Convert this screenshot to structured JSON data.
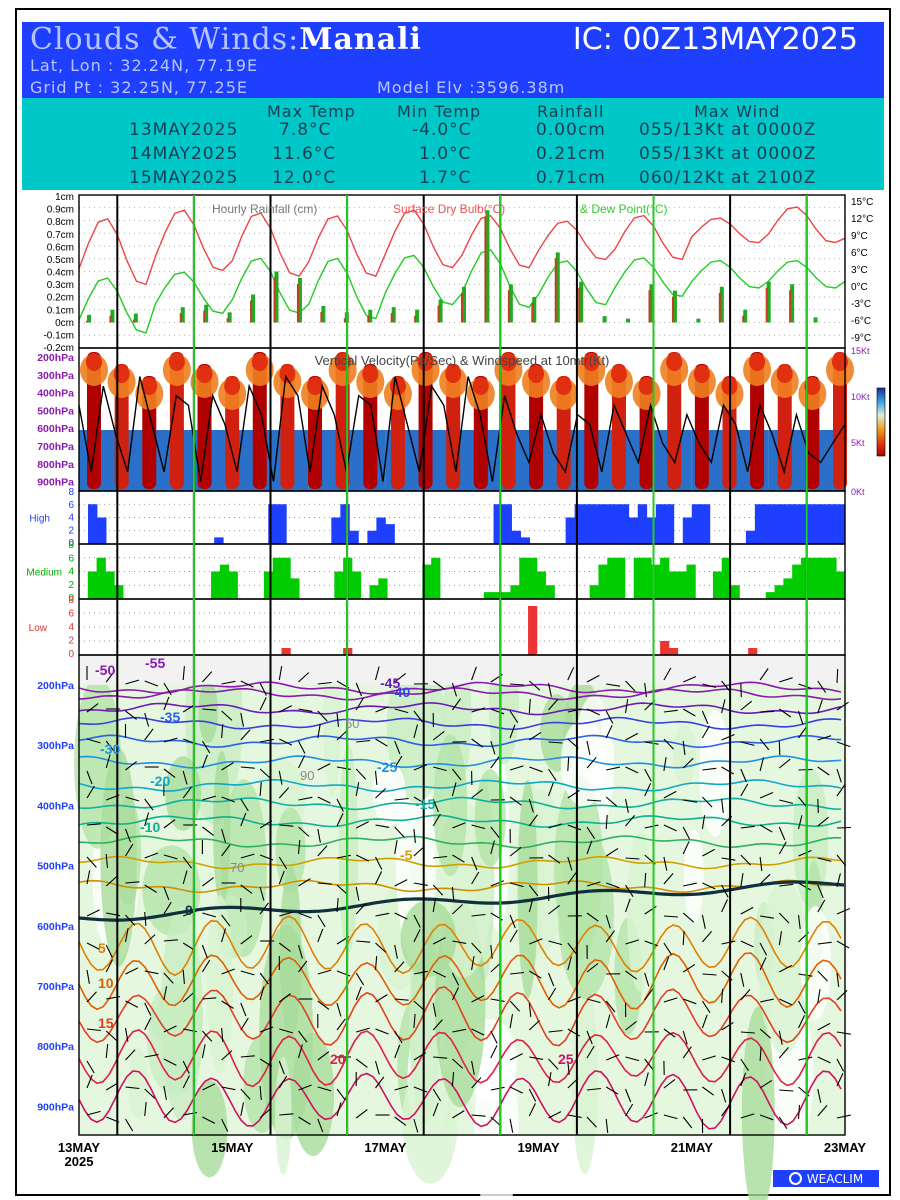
{
  "header": {
    "title_prefix": "Clouds & Winds:",
    "location": "Manali",
    "ic": "IC: 00Z13MAY2025",
    "latlon": "Lat, Lon : 32.24N, 77.19E",
    "gridpt": "Grid Pt  : 32.25N, 77.25E",
    "model_elv": "Model Elv :3596.38m"
  },
  "summary": {
    "columns": [
      "Max Temp",
      "Min Temp",
      "Rainfall",
      "Max Wind"
    ],
    "rows": [
      {
        "date": "13MAY2025",
        "max_temp": "7.8°C",
        "min_temp": "-4.0°C",
        "rainfall": "0.00cm",
        "max_wind": "055/13Kt at 0000Z"
      },
      {
        "date": "14MAY2025",
        "max_temp": "11.6°C",
        "min_temp": "1.0°C",
        "rainfall": "0.21cm",
        "max_wind": "055/13Kt at 0000Z"
      },
      {
        "date": "15MAY2025",
        "max_temp": "12.0°C",
        "min_temp": "1.7°C",
        "rainfall": "0.71cm",
        "max_wind": "060/12Kt at 2100Z"
      }
    ]
  },
  "chart_data": {
    "type": "line",
    "panel1": {
      "title": "Hourly Rainfall (cm)",
      "title2": "Surface Dry Bulb(°C)",
      "title3": "& Dew Point(°C)",
      "left_ticks": [
        "1cm",
        "0.9cm",
        "0.8cm",
        "0.7cm",
        "0.6cm",
        "0.5cm",
        "0.4cm",
        "0.3cm",
        "0.2cm",
        "0.1cm",
        "0cm",
        "-0.1cm",
        "-0.2cm"
      ],
      "right_ticks": [
        "15°C",
        "12°C",
        "9°C",
        "6°C",
        "3°C",
        "0°C",
        "-3°C",
        "-6°C",
        "-9°C"
      ],
      "temp_range": [
        -10.5,
        16.5
      ],
      "rain_range": [
        -0.2,
        1.0
      ],
      "drybulb_max": [
        12.5,
        14.0,
        13.5,
        13.0,
        14.0,
        13.0,
        12.0,
        13.0,
        12.5,
        14.5
      ],
      "drybulb_min": [
        6.0,
        0.5,
        3.0,
        2.0,
        2.0,
        3.5,
        3.5,
        5.0,
        5.0,
        8.0,
        8.0,
        7.0
      ],
      "dewpoint_max": [
        2.0,
        3.0,
        5.5,
        5.5,
        6.0,
        7.0,
        5.0,
        5.5,
        5.0,
        5.0
      ],
      "dewpoint_min": [
        -3.5,
        -8.0,
        -4.5,
        -4.5,
        -5.5,
        -3.0,
        -3.5,
        -3.0,
        -1.5,
        0.0
      ],
      "rain_values": [
        0.06,
        0.1,
        0.07,
        0.0,
        0.12,
        0.14,
        0.08,
        0.22,
        0.4,
        0.35,
        0.13,
        0.08,
        0.1,
        0.12,
        0.1,
        0.18,
        0.28,
        0.88,
        0.3,
        0.2,
        0.55,
        0.32,
        0.05,
        0.03,
        0.3,
        0.25,
        0.03,
        0.28,
        0.1,
        0.32,
        0.3,
        0.04
      ]
    },
    "panel2": {
      "title": "Vertical Velocity(Pa/Sec) & Windspeed at 10mtr(Kt)",
      "left_ticks": [
        "200hPa",
        "300hPa",
        "400hPa",
        "500hPa",
        "600hPa",
        "700hPa",
        "800hPa",
        "900hPa"
      ],
      "right_ticks": [
        "15Kt",
        "10Kt",
        "5Kt",
        "0Kt"
      ],
      "windspeed_range": [
        0,
        15
      ],
      "windspeed": [
        9,
        2,
        11,
        6,
        2,
        12,
        7,
        2,
        10,
        9,
        1,
        10,
        7,
        2,
        11,
        8,
        1,
        12,
        10,
        2,
        11,
        8,
        2,
        10,
        9,
        1,
        12,
        7,
        2,
        11,
        9,
        2,
        12,
        8,
        1,
        10,
        6,
        3,
        8,
        4,
        2,
        8,
        7,
        2,
        9,
        6,
        3,
        9,
        5,
        3,
        8,
        5,
        3,
        9,
        7,
        2,
        9,
        6,
        2,
        8,
        4,
        3,
        5,
        7
      ]
    },
    "panel3": {
      "label_high": "High",
      "label_medium": "Medium",
      "label_low": "Low",
      "ticks_octa": [
        "8",
        "6",
        "4",
        "2",
        "0"
      ],
      "high_octa": [
        0,
        6,
        4,
        0,
        0,
        0,
        0,
        0,
        0,
        0,
        0,
        0,
        0,
        0,
        0,
        1,
        0,
        0,
        0,
        0,
        0,
        6,
        6,
        0,
        0,
        0,
        0,
        0,
        4,
        6,
        2,
        0,
        2,
        4,
        3,
        0,
        0,
        0,
        0,
        0,
        0,
        0,
        0,
        0,
        0,
        0,
        6,
        6,
        2,
        1,
        0,
        0,
        0,
        0,
        4,
        6,
        6,
        6,
        6,
        6,
        6,
        4,
        6,
        4,
        6,
        6,
        0,
        4,
        6,
        6,
        0,
        0,
        0,
        0,
        2,
        6,
        6,
        6,
        6,
        6,
        6,
        6,
        6,
        6,
        6
      ],
      "medium_octa": [
        0,
        4,
        6,
        4,
        2,
        0,
        0,
        0,
        0,
        0,
        0,
        0,
        0,
        0,
        0,
        4,
        5,
        4,
        0,
        0,
        0,
        4,
        6,
        6,
        3,
        0,
        0,
        0,
        0,
        4,
        6,
        4,
        0,
        2,
        3,
        0,
        0,
        0,
        0,
        5,
        6,
        0,
        0,
        0,
        0,
        0,
        1,
        1,
        1,
        2,
        6,
        6,
        4,
        2,
        0,
        0,
        0,
        0,
        2,
        5,
        6,
        6,
        0,
        6,
        6,
        5,
        6,
        4,
        4,
        5,
        0,
        0,
        4,
        6,
        2,
        0,
        0,
        0,
        1,
        2,
        3,
        5,
        6,
        6,
        6,
        6,
        4
      ],
      "low_octa": [
        0,
        0,
        0,
        0,
        0,
        0,
        0,
        0,
        0,
        0,
        0,
        0,
        0,
        0,
        0,
        0,
        0,
        0,
        0,
        0,
        0,
        0,
        0,
        1,
        0,
        0,
        0,
        0,
        0,
        0,
        1,
        0,
        0,
        0,
        0,
        0,
        0,
        0,
        0,
        0,
        0,
        0,
        0,
        0,
        0,
        0,
        0,
        0,
        0,
        0,
        0,
        7,
        0,
        0,
        0,
        0,
        0,
        0,
        0,
        0,
        0,
        0,
        0,
        0,
        0,
        0,
        2,
        1,
        0,
        0,
        0,
        0,
        0,
        0,
        0,
        0,
        1,
        0,
        0,
        0,
        0,
        0,
        0,
        0,
        0,
        0,
        0
      ]
    },
    "panel4": {
      "left_ticks": [
        "200hPa",
        "300hPa",
        "400hPa",
        "500hPa",
        "600hPa",
        "700hPa",
        "800hPa",
        "900hPa"
      ],
      "x_labels": [
        "13MAY",
        "15MAY",
        "17MAY",
        "19MAY",
        "21MAY",
        "23MAY"
      ],
      "x_year": "2025",
      "temp_labels": [
        "-55",
        "-50",
        "-45",
        "-40",
        "-35",
        "-30",
        "-25",
        "-20",
        "-15",
        "-10",
        "-5",
        "0",
        "5",
        "10",
        "15",
        "20",
        "25"
      ],
      "rh_labels": [
        "50",
        "70",
        "90"
      ]
    },
    "grid": true
  },
  "colors": {
    "header_bg": "#1f3fff",
    "summary_bg": "#00c8c8",
    "drybulb": "#ee4444",
    "dewpoint": "#22cc22",
    "high_cloud": "#1f3fff",
    "medium_cloud": "#00cc00",
    "low_cloud": "#ee3333",
    "day_line": "#000000",
    "noon_line": "#22cc22"
  },
  "logo": "WEACLIM"
}
